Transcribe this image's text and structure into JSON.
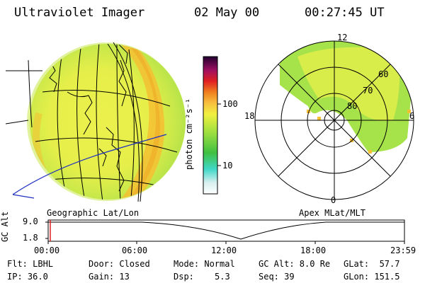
{
  "header": {
    "instrument": "Ultraviolet Imager",
    "date": "02 May 00",
    "time": "00:27:45 UT"
  },
  "colorbar": {
    "unit_label": "photon cm⁻²s⁻¹",
    "ticks": [
      "100",
      "10"
    ]
  },
  "left_panel": {
    "label": "Geographic Lat/Lon"
  },
  "right_panel": {
    "label": "Apex MLat/MLT",
    "mlt_labels": [
      "12",
      "18",
      "6",
      "0"
    ],
    "lat_labels": [
      "60",
      "70",
      "80"
    ]
  },
  "altitude_plot": {
    "ylabel": "GC Alt",
    "yticks": [
      "9.0",
      "1.8"
    ],
    "xticks": [
      "00:00",
      "06:00",
      "12:00",
      "18:00",
      "23:59"
    ]
  },
  "info": {
    "flt": "Flt: LBHL",
    "ip": "IP: 36.0",
    "door": "Door: Closed",
    "gain": "Gain: 13",
    "mode": "Mode: Normal",
    "dsp_label": "Dsp:",
    "dsp_value": "5.3",
    "gc_alt": "GC Alt: 8.0 Re",
    "seq": "Seq: 39",
    "glat": "GLat:  57.7",
    "glon": "GLon: 151.5"
  },
  "colors": {
    "aurora_green": "#a6e34a",
    "aurora_yellow": "#e8f04a",
    "limb_orange": "#f5c033",
    "marker_red": "#e02020"
  }
}
